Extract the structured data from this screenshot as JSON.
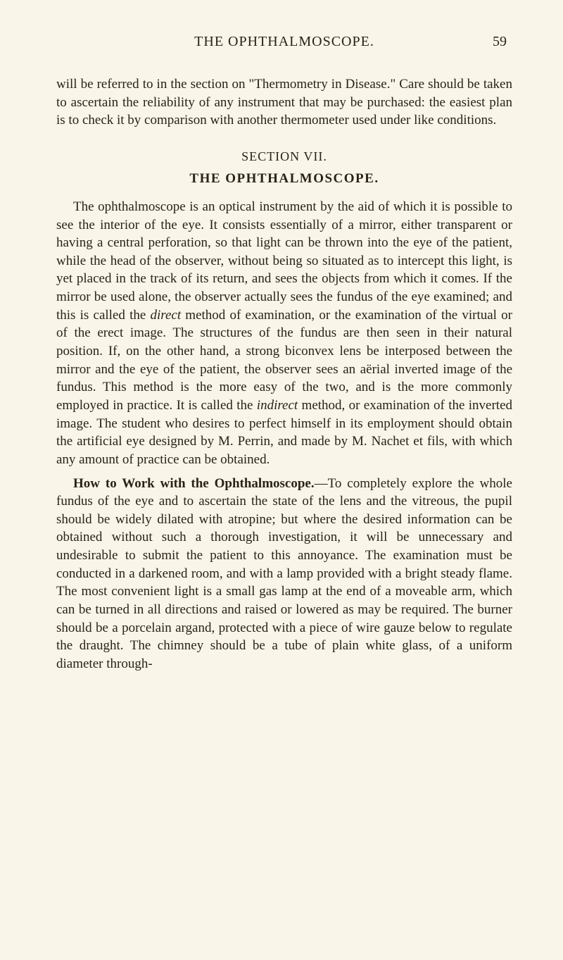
{
  "page": {
    "header_title": "THE OPHTHALMOSCOPE.",
    "page_number": "59"
  },
  "intro_paragraph": {
    "text": "will be referred to in the section on \"Thermometry in Disease.\" Care should be taken to ascertain the reliability of any instrument that may be purchased: the easiest plan is to check it by comparison with another thermometer used under like conditions."
  },
  "section": {
    "label": "SECTION VII.",
    "title": "THE OPHTHALMOSCOPE."
  },
  "main_paragraph": {
    "part1": "The ophthalmoscope is an optical instrument by the aid of which it is possible to see the interior of the eye. It consists essentially of a mirror, either transparent or having a central perforation, so that light can be thrown into the eye of the patient, while the head of the observer, without being so situated as to intercept this light, is yet placed in the track of its return, and sees the objects from which it comes. If the mirror be used alone, the observer actually sees the fundus of the eye examined; and this is called the ",
    "italic1": "direct",
    "part2": " method of examination, or the examination of the virtual or of the erect image. The structures of the fundus are then seen in their natural position. If, on the other hand, a strong biconvex lens be interposed between the mirror and the eye of the patient, the observer sees an aërial inverted image of the fundus. This method is the more easy of the two, and is the more commonly employed in practice. It is called the ",
    "italic2": "indirect",
    "part3": " method, or examination of the inverted image. The student who desires to perfect himself in its employment should obtain the artificial eye designed by M. Perrin, and made by M. Nachet et fils, with which any amount of practice can be obtained."
  },
  "how_to_work": {
    "heading": "How to Work with the Ophthalmoscope.",
    "text": "—To completely explore the whole fundus of the eye and to ascertain the state of the lens and the vitreous, the pupil should be widely dilated with atropine; but where the desired information can be obtained without such a thorough investigation, it will be unnecessary and undesirable to submit the patient to this annoyance. The examination must be conducted in a darkened room, and with a lamp provided with a bright steady flame. The most convenient light is a small gas lamp at the end of a moveable arm, which can be turned in all directions and raised or lowered as may be required. The burner should be a porcelain argand, protected with a piece of wire gauze below to regulate the draught. The chimney should be a tube of plain white glass, of a uniform diameter through-"
  },
  "styles": {
    "background_color": "#f9f5e8",
    "text_color": "#2a2218",
    "body_font_size": 19,
    "header_font_size": 20,
    "line_height": 1.35
  }
}
